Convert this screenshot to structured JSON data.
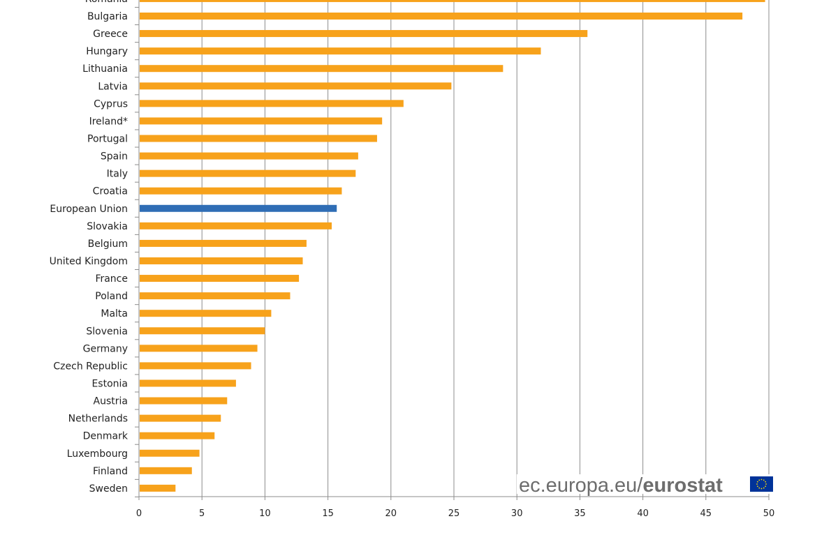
{
  "chart_data": {
    "type": "bar",
    "orientation": "horizontal",
    "categories": [
      "Romania",
      "Bulgaria",
      "Greece",
      "Hungary",
      "Lithuania",
      "Latvia",
      "Cyprus",
      "Ireland*",
      "Portugal",
      "Spain",
      "Italy",
      "Croatia",
      "European Union",
      "Slovakia",
      "Belgium",
      "United Kingdom",
      "France",
      "Poland",
      "Malta",
      "Slovenia",
      "Germany",
      "Czech Republic",
      "Estonia",
      "Austria",
      "Netherlands",
      "Denmark",
      "Luxembourg",
      "Finland",
      "Sweden"
    ],
    "values": [
      49.7,
      47.9,
      35.6,
      31.9,
      28.9,
      24.8,
      21.0,
      19.3,
      18.9,
      17.4,
      17.2,
      16.1,
      15.7,
      15.3,
      13.3,
      13.0,
      12.7,
      12.0,
      10.5,
      10.0,
      9.4,
      8.9,
      7.7,
      7.0,
      6.5,
      6.0,
      4.8,
      4.2,
      2.9
    ],
    "highlight": "European Union",
    "xlim": [
      0,
      50
    ],
    "xticks": [
      "0",
      "5",
      "10",
      "15",
      "20",
      "25",
      "30",
      "35",
      "40",
      "45",
      "50"
    ],
    "grid": true,
    "colors": {
      "bar": "#F7A21B",
      "highlight": "#2F6DB5",
      "grid": "#8c8c8c"
    },
    "title": "",
    "xlabel": "",
    "ylabel": ""
  },
  "logo": {
    "text_light": "ec.europa.eu/",
    "text_bold": "eurostat",
    "flag_color": "#003399",
    "star_color": "#FFDD00"
  }
}
